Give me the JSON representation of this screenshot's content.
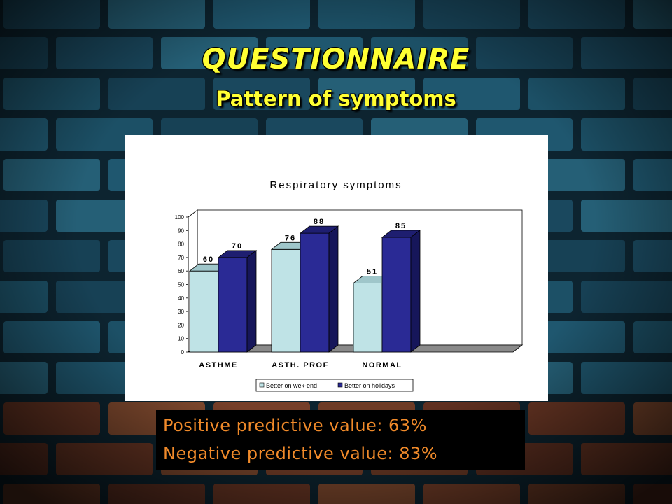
{
  "slide": {
    "title": "QUESTIONNAIRE",
    "subtitle": "Pattern of symptoms",
    "positive_predictive_value": "Positive predictive value: 63%",
    "negative_predictive_value": "Negative predictive value: 83%"
  },
  "colors": {
    "title": "#ffff33",
    "predictive_text": "#f08a2a",
    "series_weekend": "#bfe3e6",
    "series_holidays": "#2a2a95"
  },
  "chart_data": {
    "type": "bar",
    "title": "Respiratory symptoms",
    "categories": [
      "ASTHME",
      "ASTH. PROF",
      "NORMAL"
    ],
    "series": [
      {
        "name": "Better on wek-end",
        "values": [
          60,
          76,
          51
        ]
      },
      {
        "name": "Better on holidays",
        "values": [
          70,
          88,
          85
        ]
      }
    ],
    "ylim": [
      0,
      100
    ],
    "yticks": [
      "0",
      "10",
      "20",
      "30",
      "40",
      "50",
      "60",
      "70",
      "80",
      "90",
      "100"
    ],
    "grid": false,
    "legend_position": "bottom-right",
    "three_d": true
  }
}
